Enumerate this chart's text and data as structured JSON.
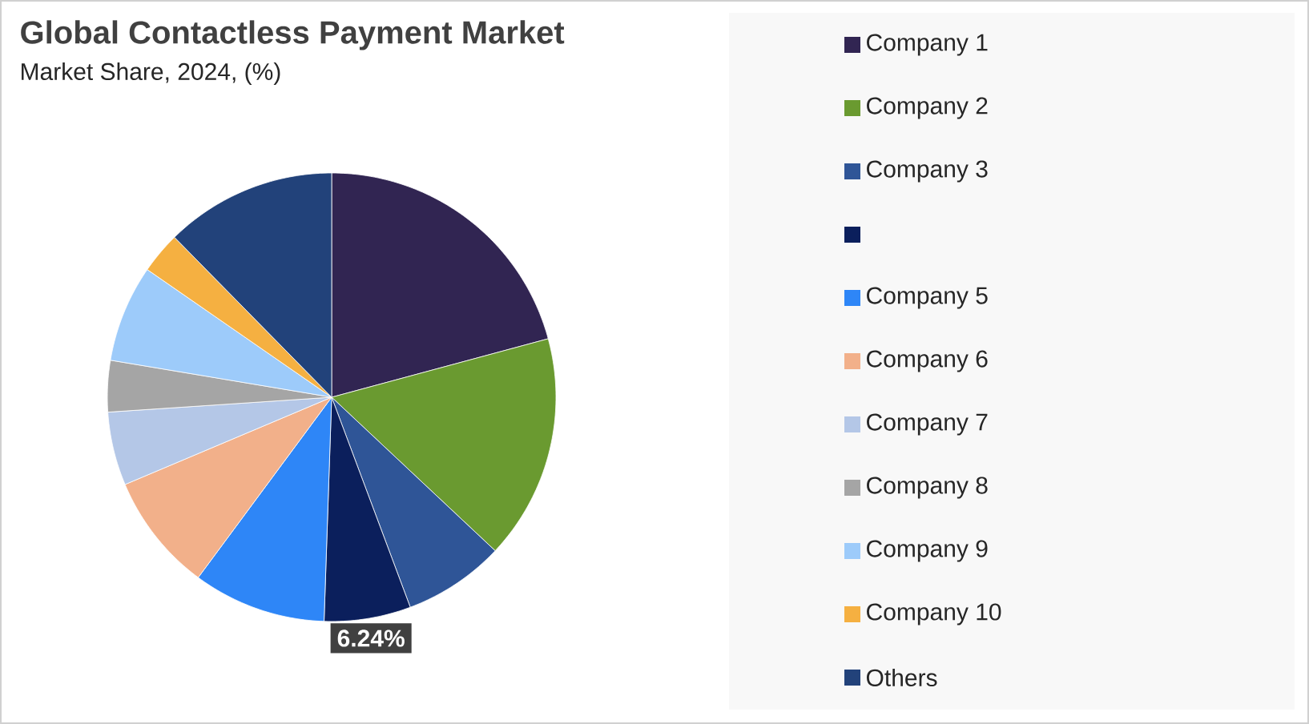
{
  "chart_data": {
    "type": "pie",
    "title": "Global Contactless Payment Market",
    "subtitle": "Market Share, 2024, (%)",
    "categories": [
      "Company 1",
      "Company 2",
      "Company 3",
      null,
      "Company 5",
      "Company 6",
      "Company 7",
      "Company 8",
      "Company 9",
      "Company 10",
      "Others"
    ],
    "values": [
      20.8,
      16.2,
      7.3,
      6.24,
      9.6,
      8.5,
      5.3,
      3.7,
      7.0,
      3.0,
      12.36
    ],
    "colors": [
      "#312552",
      "#6a9a30",
      "#2f5597",
      "#0b1f5c",
      "#2e86f7",
      "#f2b08a",
      "#b4c7e7",
      "#a5a5a5",
      "#9dcbfa",
      "#f5b041",
      "#22427a"
    ],
    "value_labels": [
      null,
      null,
      null,
      "6.24%",
      null,
      null,
      null,
      null,
      null,
      null,
      null
    ],
    "legend": "right"
  }
}
